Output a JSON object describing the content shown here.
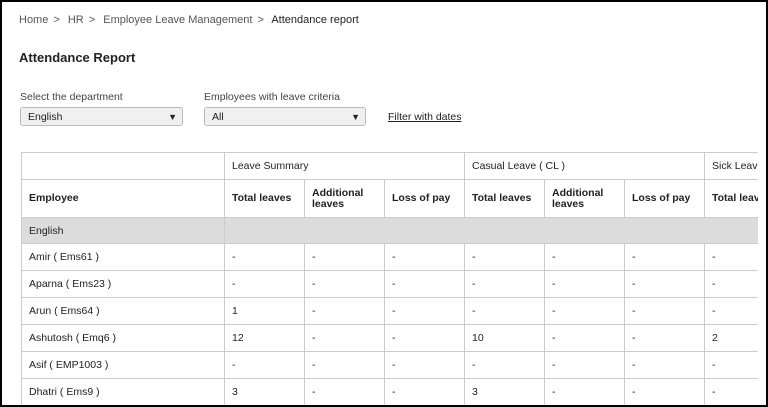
{
  "breadcrumb": {
    "items": [
      "Home",
      "HR",
      "Employee Leave Management",
      "Attendance report"
    ],
    "separator": ">"
  },
  "page_title": "Attendance Report",
  "filters": {
    "department": {
      "label": "Select the department",
      "value": "English"
    },
    "criteria": {
      "label": "Employees with leave criteria",
      "value": "All"
    },
    "date_link": "Filter with dates"
  },
  "table": {
    "employee_header": "Employee",
    "groups": [
      "Leave Summary",
      "Casual Leave ( CL )",
      "Sick Leave"
    ],
    "columns": [
      "Total leaves",
      "Additional leaves",
      "Loss of pay",
      "Total leaves",
      "Additional leaves",
      "Loss of pay",
      "Total leaves"
    ],
    "section": "English",
    "rows": [
      {
        "name": "Amir ( Ems61 )",
        "cells": [
          "-",
          "-",
          "-",
          "-",
          "-",
          "-",
          "-"
        ]
      },
      {
        "name": "Aparna ( Ems23 )",
        "cells": [
          "-",
          "-",
          "-",
          "-",
          "-",
          "-",
          "-"
        ]
      },
      {
        "name": "Arun ( Ems64 )",
        "cells": [
          1,
          "-",
          "-",
          "-",
          "-",
          "-",
          "-"
        ]
      },
      {
        "name": "Ashutosh ( Emq6 )",
        "cells": [
          12,
          "-",
          "-",
          10,
          "-",
          "-",
          2
        ]
      },
      {
        "name": "Asif ( EMP1003 )",
        "cells": [
          "-",
          "-",
          "-",
          "-",
          "-",
          "-",
          "-"
        ]
      },
      {
        "name": "Dhatri ( Ems9 )",
        "cells": [
          3,
          "-",
          "-",
          3,
          "-",
          "-",
          "-"
        ]
      }
    ]
  }
}
